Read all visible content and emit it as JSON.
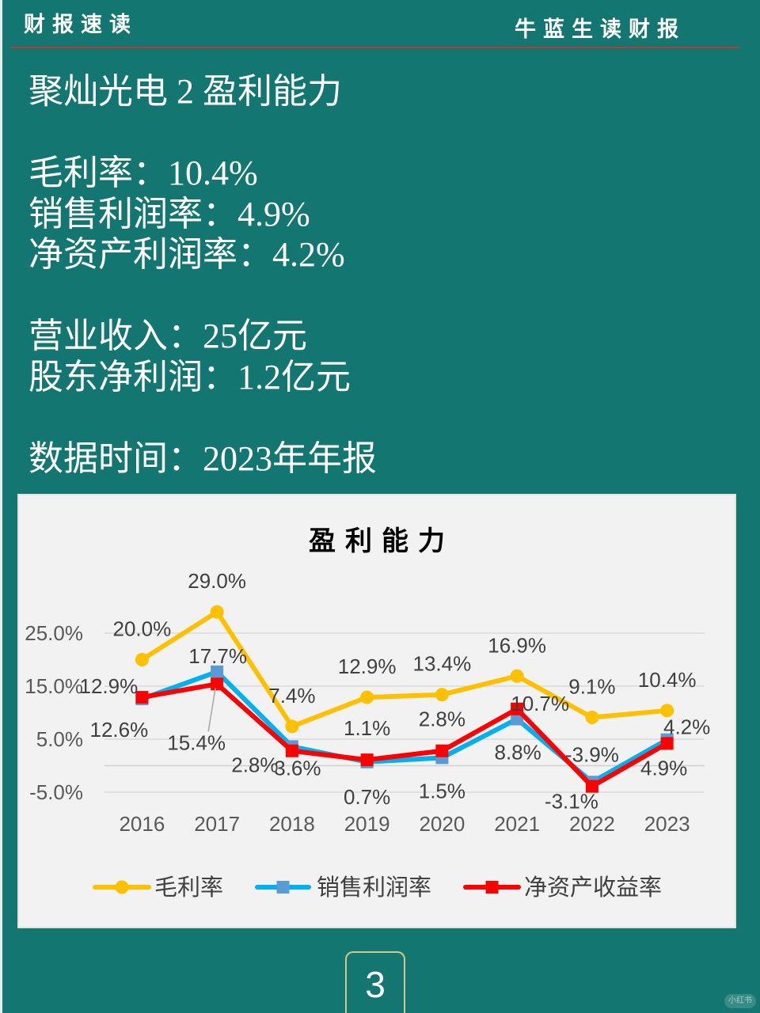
{
  "header": {
    "left_title": "财报速读",
    "right_title": "牛蓝生读财报"
  },
  "main": {
    "heading": "聚灿光电 2 盈利能力",
    "separator": "：",
    "margins": [
      {
        "label": "毛利率",
        "value": "10.4%"
      },
      {
        "label": "销售利润率",
        "value": "4.9%"
      },
      {
        "label": "净资产利润率",
        "value": "4.2%"
      }
    ],
    "financials": [
      {
        "label": "营业收入",
        "value": "25亿元"
      },
      {
        "label": "股东净利润",
        "value": "1.2亿元"
      }
    ],
    "data_period": {
      "label": "数据时间",
      "value": "2023年年报"
    }
  },
  "chart_data": {
    "type": "line",
    "title": "盈利能力",
    "xlabel": "",
    "ylabel": "",
    "categories": [
      "2016",
      "2017",
      "2018",
      "2019",
      "2020",
      "2021",
      "2022",
      "2023"
    ],
    "series": [
      {
        "name": "毛利率",
        "values": [
          20.0,
          29.0,
          7.4,
          12.9,
          13.4,
          16.9,
          9.1,
          10.4
        ],
        "labels": [
          "20.0%",
          "29.0%",
          "7.4%",
          "12.9%",
          "13.4%",
          "16.9%",
          "9.1%",
          "10.4%"
        ],
        "color": "#FFC000",
        "marker": "circle",
        "marker_color": "#FFC000"
      },
      {
        "name": "销售利润率",
        "values": [
          12.6,
          17.7,
          3.6,
          0.7,
          1.5,
          8.8,
          -3.1,
          4.9
        ],
        "labels": [
          "12.6%",
          "17.7%",
          "3.6%",
          "0.7%",
          "1.5%",
          "8.8%",
          "-3.1%",
          "4.9%"
        ],
        "color": "#00B0F0",
        "marker": "square",
        "marker_color": "#5B9BD5"
      },
      {
        "name": "净资产收益率",
        "values": [
          12.9,
          15.4,
          2.8,
          1.1,
          2.8,
          10.7,
          -3.9,
          4.2
        ],
        "labels": [
          "12.9%",
          "15.4%",
          "2.8%",
          "1.1%",
          "2.8%",
          "10.7%",
          "-3.9%",
          "4.2%"
        ],
        "color": "#FF0000",
        "marker": "square",
        "marker_color": "#FF0000"
      }
    ],
    "y_ticks": [
      25,
      15,
      5,
      -5
    ],
    "y_tick_labels": [
      "25.0%",
      "15.0%",
      "5.0%",
      "-5.0%"
    ],
    "ylim": [
      -5,
      30
    ],
    "grid": true,
    "data_labels": true,
    "legend": "bottom"
  },
  "page": {
    "number": "3"
  },
  "watermark": "小红书",
  "colors": {
    "background": "#137671",
    "header_rule": "#C0392B",
    "chart_background": "#F2F2F2",
    "page_box_border": "#CFC98E"
  }
}
